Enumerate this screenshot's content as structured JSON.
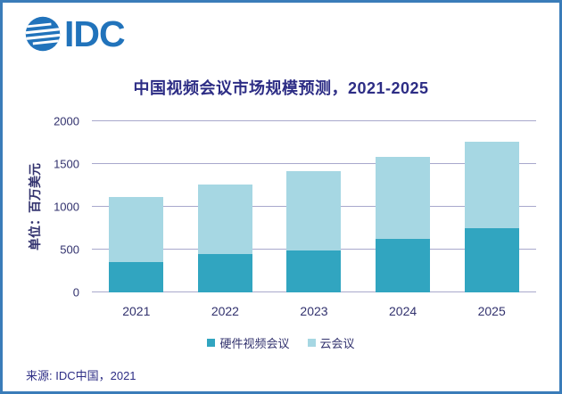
{
  "header": {
    "logo_text": "IDC"
  },
  "footer": {
    "source": "来源: IDC中国，2021"
  },
  "chart_data": {
    "type": "bar",
    "stacked": true,
    "title": "中国视频会议市场规模预测，2021-2025",
    "xlabel": "",
    "ylabel": "单位：百万美元",
    "categories": [
      "2021",
      "2022",
      "2023",
      "2024",
      "2025"
    ],
    "series": [
      {
        "name": "硬件视频会议",
        "color": "#31A5C0",
        "values": [
          355,
          445,
          490,
          630,
          745
        ]
      },
      {
        "name": "云会议",
        "color": "#A6D7E3",
        "values": [
          755,
          815,
          925,
          955,
          1015
        ]
      }
    ],
    "totals": [
      1110,
      1260,
      1415,
      1585,
      1760
    ],
    "ylim": [
      0,
      2000
    ],
    "y_ticks": [
      0,
      500,
      1000,
      1500,
      2000
    ],
    "grid": true,
    "legend_position": "bottom"
  },
  "colors": {
    "border": "#3A7CB9",
    "logo_blue": "#2173BB",
    "title_text": "#2D2D85",
    "axis_text": "#32326E",
    "gridline": "#A8A8CC",
    "bar_hardware": "#31A5C0",
    "bar_cloud": "#A6D7E3"
  }
}
